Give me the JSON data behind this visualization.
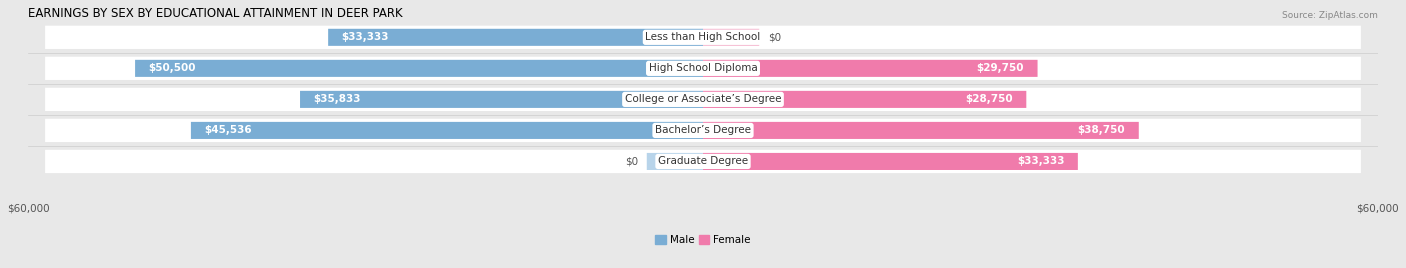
{
  "title": "EARNINGS BY SEX BY EDUCATIONAL ATTAINMENT IN DEER PARK",
  "source": "Source: ZipAtlas.com",
  "categories": [
    "Less than High School",
    "High School Diploma",
    "College or Associate’s Degree",
    "Bachelor’s Degree",
    "Graduate Degree"
  ],
  "male_values": [
    33333,
    50500,
    35833,
    45536,
    0
  ],
  "female_values": [
    0,
    29750,
    28750,
    38750,
    33333
  ],
  "male_labels": [
    "$33,333",
    "$50,500",
    "$35,833",
    "$45,536",
    "$0"
  ],
  "female_labels": [
    "$0",
    "$29,750",
    "$28,750",
    "$38,750",
    "$33,333"
  ],
  "male_color": "#7aadd4",
  "female_color": "#f07bab",
  "male_color_light": "#b8d4ea",
  "female_color_light": "#f5b8d0",
  "max_value": 60000,
  "background_color": "#e8e8e8",
  "row_bg_color": "#f2f2f2",
  "title_fontsize": 8.5,
  "label_fontsize": 7.5,
  "tick_fontsize": 7.5,
  "source_fontsize": 6.5
}
